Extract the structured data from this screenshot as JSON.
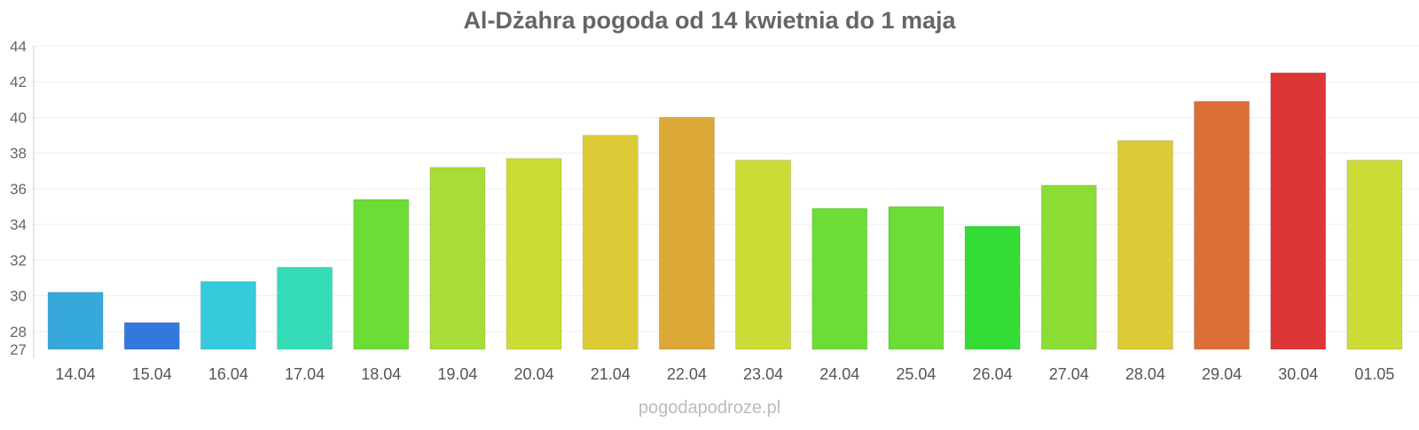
{
  "chart_data": {
    "type": "bar",
    "title": "Al-Dżahra pogoda od 14 kwietnia do 1 maja",
    "xlabel": "",
    "ylabel": "",
    "ylim": [
      27,
      44
    ],
    "y_ticks": [
      27,
      28,
      30,
      32,
      34,
      36,
      38,
      40,
      42,
      44
    ],
    "grid": true,
    "legend": "none",
    "categories": [
      "14.04",
      "15.04",
      "16.04",
      "17.04",
      "18.04",
      "19.04",
      "20.04",
      "21.04",
      "22.04",
      "23.04",
      "24.04",
      "25.04",
      "26.04",
      "27.04",
      "28.04",
      "29.04",
      "30.04",
      "01.05"
    ],
    "values": [
      30.2,
      28.5,
      30.8,
      31.6,
      35.4,
      37.2,
      37.7,
      39.0,
      40.0,
      37.6,
      34.9,
      35.0,
      33.9,
      36.2,
      38.7,
      40.9,
      42.5,
      37.6
    ],
    "colors": [
      "#36a8dc",
      "#3478dc",
      "#36cadc",
      "#36dcb8",
      "#6cdc36",
      "#a8dc36",
      "#ccdc36",
      "#dcca36",
      "#dca836",
      "#ccdc36",
      "#6cdc36",
      "#6cdc36",
      "#36dc36",
      "#8cdc36",
      "#dcca36",
      "#dc6e36",
      "#dc3636",
      "#ccdc36"
    ]
  },
  "credit": "pogodapodroze.pl"
}
